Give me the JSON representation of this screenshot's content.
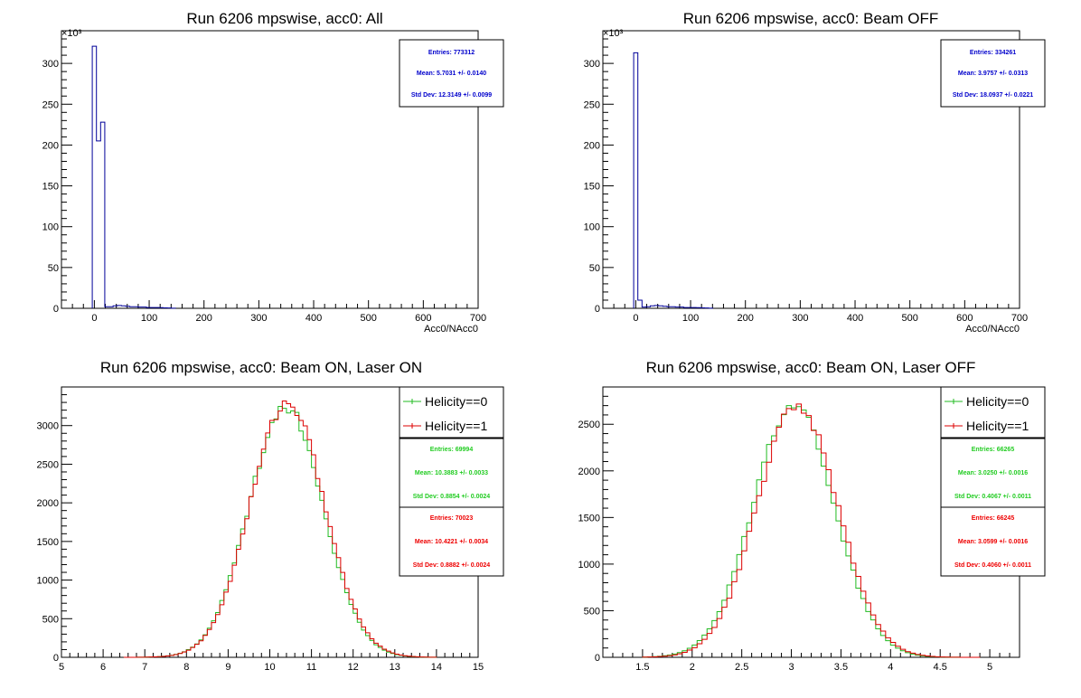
{
  "chart_data": [
    {
      "type": "histogram",
      "title": "Run 6206 mpswise, acc0: All",
      "xlabel": "Acc0/NAcc0",
      "ylabel": "",
      "y_scale_label": "×10³",
      "xlim": [
        -60,
        700
      ],
      "ylim": [
        0,
        340
      ],
      "x_ticks": [
        "0",
        "100",
        "200",
        "300",
        "400",
        "500",
        "600",
        "700"
      ],
      "y_ticks": [
        "0",
        "50",
        "100",
        "150",
        "200",
        "250",
        "300"
      ],
      "series": [
        {
          "color": "#000099",
          "bin_width": 7.6,
          "bin_edges_start": -3.8,
          "values": [
            321,
            205,
            228,
            2,
            2,
            3,
            3.5,
            3,
            2.5,
            2,
            2,
            1.5,
            1.5,
            1,
            1,
            1,
            0.8,
            0.6,
            0.4,
            0.2
          ]
        }
      ],
      "stats": [
        {
          "color": "#0000cc",
          "entries": "Entries: 773312",
          "mean": "Mean: 5.7031 +/- 0.0140",
          "std": "Std Dev: 12.3149 +/- 0.0099"
        }
      ]
    },
    {
      "type": "histogram",
      "title": "Run 6206 mpswise, acc0: Beam OFF",
      "xlabel": "Acc0/NAcc0",
      "ylabel": "",
      "y_scale_label": "×10³",
      "xlim": [
        -60,
        700
      ],
      "ylim": [
        0,
        340
      ],
      "x_ticks": [
        "0",
        "100",
        "200",
        "300",
        "400",
        "500",
        "600",
        "700"
      ],
      "y_ticks": [
        "0",
        "50",
        "100",
        "150",
        "200",
        "250",
        "300"
      ],
      "series": [
        {
          "color": "#000099",
          "bin_width": 7.6,
          "bin_edges_start": -3.8,
          "values": [
            313,
            10,
            1.5,
            2,
            3,
            3.5,
            3,
            2.5,
            2,
            2,
            1.5,
            1.5,
            1,
            1,
            1,
            0.8,
            0.6,
            0.4,
            0.2
          ]
        }
      ],
      "stats": [
        {
          "color": "#0000cc",
          "entries": "Entries: 334261",
          "mean": "Mean: 3.9757 +/- 0.0313",
          "std": "Std Dev: 18.0937 +/- 0.0221"
        }
      ]
    },
    {
      "type": "histogram",
      "title": "Run 6206 mpswise, acc0: Beam ON, Laser ON",
      "xlabel": "",
      "ylabel": "",
      "xlim": [
        5,
        15
      ],
      "ylim": [
        0,
        3500
      ],
      "x_ticks": [
        "5",
        "6",
        "7",
        "8",
        "9",
        "10",
        "11",
        "12",
        "13",
        "14",
        "15"
      ],
      "y_ticks": [
        "0",
        "500",
        "1000",
        "1500",
        "2000",
        "2500",
        "3000"
      ],
      "series": [
        {
          "name": "Helicity==0",
          "color": "#22bb22",
          "mean": 10.3883,
          "sigma": 0.8854,
          "peak": 3250,
          "bin_width": 0.1,
          "x_start": 6.5,
          "x_end": 14.0
        },
        {
          "name": "Helicity==1",
          "color": "#dd0000",
          "mean": 10.4221,
          "sigma": 0.8882,
          "peak": 3300,
          "bin_width": 0.1,
          "x_start": 6.5,
          "x_end": 14.0
        }
      ],
      "stats": [
        {
          "color": "#22cc22",
          "entries": "Entries: 69994",
          "mean": "Mean: 10.3883 +/- 0.0033",
          "std": "Std Dev: 0.8854 +/- 0.0024"
        },
        {
          "color": "#ee0000",
          "entries": "Entries: 70023",
          "mean": "Mean: 10.4221 +/- 0.0034",
          "std": "Std Dev: 0.8882 +/- 0.0024"
        }
      ]
    },
    {
      "type": "histogram",
      "title": "Run 6206 mpswise, acc0: Beam ON, Laser OFF",
      "xlabel": "",
      "ylabel": "",
      "xlim": [
        1.1,
        5.3
      ],
      "ylim": [
        0,
        2900
      ],
      "x_ticks": [
        "1.5",
        "2",
        "2.5",
        "3",
        "3.5",
        "4",
        "4.5",
        "5"
      ],
      "y_ticks": [
        "0",
        "500",
        "1000",
        "1500",
        "2000",
        "2500"
      ],
      "series": [
        {
          "name": "Helicity==0",
          "color": "#22bb22",
          "mean": 3.025,
          "sigma": 0.4067,
          "peak": 2720,
          "bin_width": 0.05,
          "x_start": 1.5,
          "x_end": 4.9
        },
        {
          "name": "Helicity==1",
          "color": "#dd0000",
          "mean": 3.0599,
          "sigma": 0.406,
          "peak": 2700,
          "bin_width": 0.05,
          "x_start": 1.5,
          "x_end": 4.9
        }
      ],
      "stats": [
        {
          "color": "#22cc22",
          "entries": "Entries: 66265",
          "mean": "Mean: 3.0250 +/- 0.0016",
          "std": "Std Dev: 0.4067 +/- 0.0011"
        },
        {
          "color": "#ee0000",
          "entries": "Entries: 66245",
          "mean": "Mean: 3.0599 +/- 0.0016",
          "std": "Std Dev: 0.4060 +/- 0.0011"
        }
      ]
    }
  ]
}
